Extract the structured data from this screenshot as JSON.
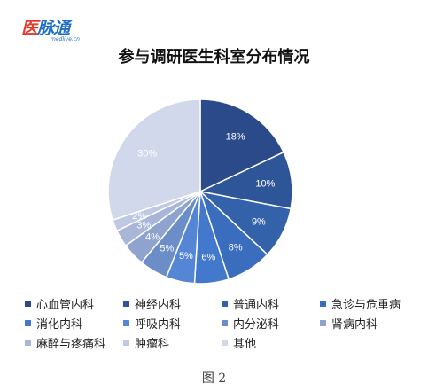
{
  "logo": {
    "mark_first": "医",
    "mark_rest": "脉通",
    "subtitle": "medlive.cn"
  },
  "chart_data": {
    "type": "pie",
    "title": "参与调研医生科室分布情况",
    "start_angle_deg": 0,
    "direction": "clockwise",
    "legend_position": "bottom",
    "slices": [
      {
        "label": "心血管内科",
        "value": 18,
        "display": "18%",
        "color": "#2b4a8a",
        "label_color": "#ffffff"
      },
      {
        "label": "神经内科",
        "value": 10,
        "display": "10%",
        "color": "#2e5598",
        "label_color": "#ffffff"
      },
      {
        "label": "普通内科",
        "value": 9,
        "display": "9%",
        "color": "#3462aa",
        "label_color": "#ffffff"
      },
      {
        "label": "急诊与危重病",
        "value": 8,
        "display": "8%",
        "color": "#3a6dbe",
        "label_color": "#ffffff"
      },
      {
        "label": "消化内科",
        "value": 6,
        "display": "6%",
        "color": "#4279cc",
        "label_color": "#ffffff"
      },
      {
        "label": "呼吸内科",
        "value": 5,
        "display": "5%",
        "color": "#5586d6",
        "label_color": "#ffffff"
      },
      {
        "label": "内分泌科",
        "value": 5,
        "display": "5%",
        "color": "#6b8dc8",
        "label_color": "#ffffff"
      },
      {
        "label": "肾病内科",
        "value": 4,
        "display": "4%",
        "color": "#8ea4cf",
        "label_color": "#ffffff"
      },
      {
        "label": "麻醉与疼痛科",
        "value": 3,
        "display": "3%",
        "color": "#a8b6d8",
        "label_color": "#ffffff"
      },
      {
        "label": "肿瘤科",
        "value": 2,
        "display": "2%",
        "color": "#bfc9e4",
        "label_color": "#ffffff"
      },
      {
        "label": "其他",
        "value": 30,
        "display": "30%",
        "color": "#d2d8ec",
        "label_color": "#ffffff"
      }
    ]
  },
  "caption": "图 2"
}
